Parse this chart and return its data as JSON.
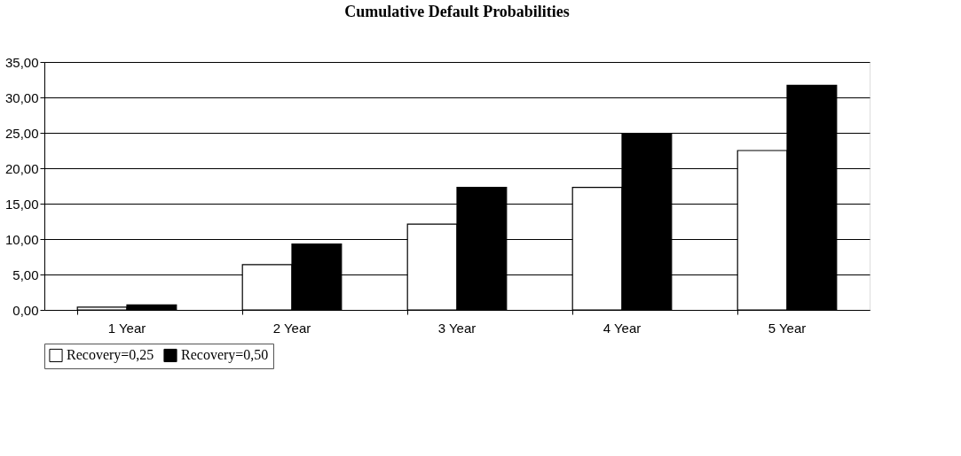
{
  "chart_data": {
    "type": "bar",
    "title": "Cumulative Default Probabilities",
    "categories": [
      "1 Year",
      "2 Year",
      "3 Year",
      "4 Year",
      "5 Year"
    ],
    "series": [
      {
        "name": "Recovery=0,25",
        "color": "#ffffff",
        "values": [
          0.4,
          6.4,
          12.1,
          17.3,
          22.5
        ]
      },
      {
        "name": "Recovery=0,50",
        "color": "#000000",
        "values": [
          0.7,
          9.3,
          17.3,
          24.8,
          31.7
        ]
      }
    ],
    "ylim": [
      0,
      35
    ],
    "yticks": [
      {
        "value": 0,
        "label": "0,00"
      },
      {
        "value": 5,
        "label": "5,00"
      },
      {
        "value": 10,
        "label": "10,00"
      },
      {
        "value": 15,
        "label": "15,00"
      },
      {
        "value": 20,
        "label": "20,00"
      },
      {
        "value": 25,
        "label": "25,00"
      },
      {
        "value": 30,
        "label": "30,00"
      },
      {
        "value": 35,
        "label": "35,00"
      }
    ],
    "grid": "y",
    "legend": "bottom"
  }
}
